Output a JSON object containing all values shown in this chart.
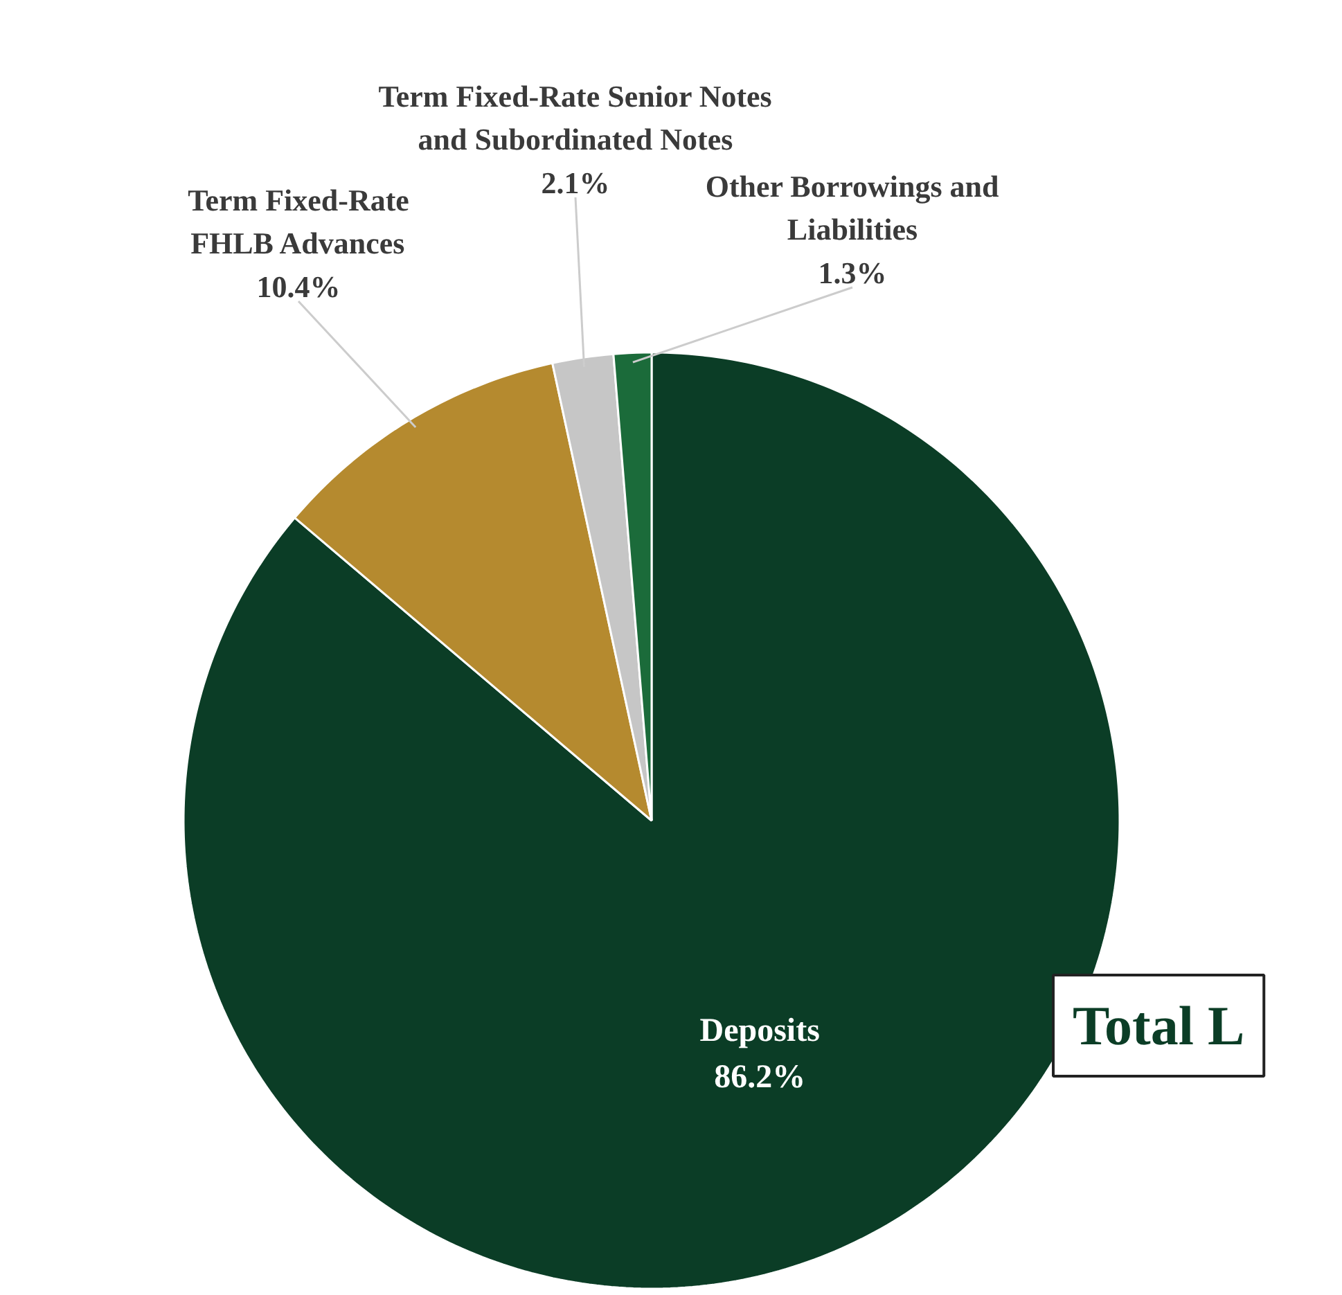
{
  "chart_data": {
    "type": "pie",
    "categories": [
      "Deposits",
      "Term Fixed-Rate\nFHLB Advances",
      "Term Fixed-Rate Senior Notes\nand Subordinated Notes",
      "Other Borrowings and\nLiabilities"
    ],
    "values": [
      86.2,
      10.4,
      2.1,
      1.3
    ],
    "colors": [
      "#0b3d26",
      "#b58a2f",
      "#c6c6c6",
      "#1b6b3a"
    ],
    "value_labels": [
      "86.2%",
      "10.4%",
      "2.1%",
      "1.3%"
    ],
    "annotations": [
      "Total L"
    ]
  }
}
